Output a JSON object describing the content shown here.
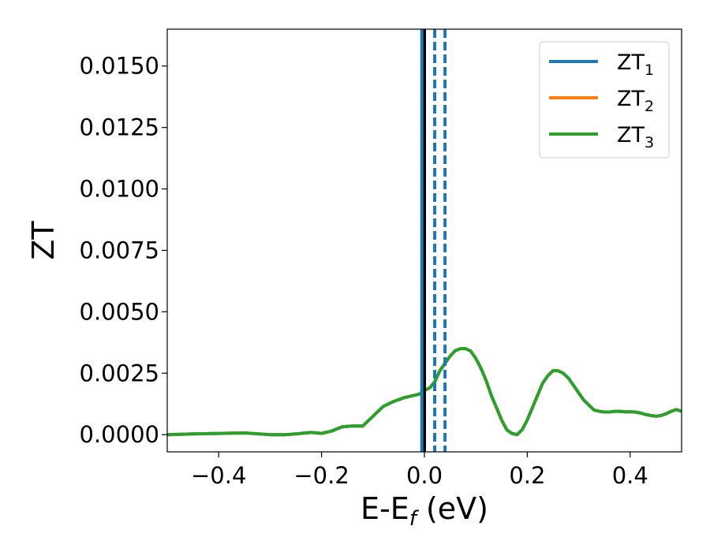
{
  "chart_data": {
    "type": "line",
    "xlabel_main": "E-E",
    "xlabel_sub": "f",
    "xlabel_unit": " (eV)",
    "ylabel": "ZT",
    "xlim": [
      -0.5,
      0.5
    ],
    "ylim": [
      -0.0007,
      0.0165
    ],
    "x_ticks": [
      -0.4,
      -0.2,
      0.0,
      0.2,
      0.4
    ],
    "x_tick_labels": [
      "−0.4",
      "−0.2",
      "0.0",
      "0.2",
      "0.4"
    ],
    "y_ticks": [
      0.0,
      0.0025,
      0.005,
      0.0075,
      0.01,
      0.0125,
      0.015
    ],
    "y_tick_labels": [
      "0.0000",
      "0.0025",
      "0.0050",
      "0.0075",
      "0.0100",
      "0.0125",
      "0.0150"
    ],
    "grid": false,
    "legend_position": "top-right",
    "vlines": [
      {
        "x": 0.0,
        "color": "#000000",
        "style": "solid"
      },
      {
        "x": -0.005,
        "color": "#1f77b4",
        "style": "solid"
      },
      {
        "x": 0.02,
        "color": "#1f77b4",
        "style": "dashed"
      },
      {
        "x": 0.04,
        "color": "#1f77b4",
        "style": "dashed"
      }
    ],
    "series": [
      {
        "name": "ZT",
        "sub": "1",
        "color": "#1f77b4",
        "x": [
          -0.5,
          -0.45,
          -0.4,
          -0.35,
          -0.3,
          -0.27,
          -0.25,
          -0.22,
          -0.2,
          -0.18,
          -0.16,
          -0.14,
          -0.12,
          -0.1,
          -0.08,
          -0.06,
          -0.04,
          -0.02,
          -0.01,
          0.0,
          0.01,
          0.02,
          0.03,
          0.04,
          0.05,
          0.06,
          0.07,
          0.08,
          0.09,
          0.1,
          0.11,
          0.12,
          0.13,
          0.14,
          0.15,
          0.16,
          0.17,
          0.18,
          0.19,
          0.2,
          0.21,
          0.22,
          0.23,
          0.24,
          0.25,
          0.26,
          0.27,
          0.28,
          0.29,
          0.3,
          0.31,
          0.32,
          0.33,
          0.34,
          0.35,
          0.36,
          0.37,
          0.38,
          0.39,
          0.4,
          0.41,
          0.42,
          0.43,
          0.44,
          0.45,
          0.46,
          0.47,
          0.48,
          0.49,
          0.5
        ],
        "y": [
          0.0,
          3e-05,
          5e-05,
          7e-05,
          0.0,
          0.0,
          3e-05,
          9e-05,
          5e-05,
          0.00015,
          0.00032,
          0.00035,
          0.00035,
          0.00075,
          0.00115,
          0.00135,
          0.0015,
          0.0016,
          0.00165,
          0.0018,
          0.0019,
          0.00215,
          0.0026,
          0.0029,
          0.0032,
          0.00342,
          0.0035,
          0.0035,
          0.0034,
          0.0031,
          0.0027,
          0.0022,
          0.0016,
          0.0011,
          0.0006,
          0.0002,
          5e-05,
          0.0,
          0.0002,
          0.0006,
          0.0011,
          0.0016,
          0.0021,
          0.0024,
          0.0026,
          0.0026,
          0.0025,
          0.0023,
          0.002,
          0.0017,
          0.0014,
          0.0012,
          0.001,
          0.00095,
          0.00092,
          0.00092,
          0.00095,
          0.00095,
          0.00093,
          0.00093,
          0.00092,
          0.00088,
          0.00082,
          0.00078,
          0.00075,
          0.00078,
          0.00085,
          0.00095,
          0.00102,
          0.00095
        ]
      },
      {
        "name": "ZT",
        "sub": "2",
        "color": "#ff7f0e",
        "x": [
          -0.5,
          -0.45,
          -0.4,
          -0.35,
          -0.3,
          -0.27,
          -0.25,
          -0.22,
          -0.2,
          -0.18,
          -0.16,
          -0.14,
          -0.12,
          -0.1,
          -0.08,
          -0.06,
          -0.04,
          -0.02,
          -0.01,
          0.0,
          0.01,
          0.02,
          0.03,
          0.04,
          0.05,
          0.06,
          0.07,
          0.08,
          0.09,
          0.1,
          0.11,
          0.12,
          0.13,
          0.14,
          0.15,
          0.16,
          0.17,
          0.18,
          0.19,
          0.2,
          0.21,
          0.22,
          0.23,
          0.24,
          0.25,
          0.26,
          0.27,
          0.28,
          0.29,
          0.3,
          0.31,
          0.32,
          0.33,
          0.34,
          0.35,
          0.36,
          0.37,
          0.38,
          0.39,
          0.4,
          0.41,
          0.42,
          0.43,
          0.44,
          0.45,
          0.46,
          0.47,
          0.48,
          0.49,
          0.5
        ],
        "y": [
          0.0,
          3e-05,
          5e-05,
          7e-05,
          0.0,
          0.0,
          3e-05,
          9e-05,
          5e-05,
          0.00015,
          0.00032,
          0.00035,
          0.00035,
          0.00075,
          0.00115,
          0.00135,
          0.0015,
          0.0016,
          0.00165,
          0.0018,
          0.0019,
          0.00215,
          0.0026,
          0.0029,
          0.0032,
          0.00342,
          0.0035,
          0.0035,
          0.0034,
          0.0031,
          0.0027,
          0.0022,
          0.0016,
          0.0011,
          0.0006,
          0.0002,
          5e-05,
          0.0,
          0.0002,
          0.0006,
          0.0011,
          0.0016,
          0.0021,
          0.0024,
          0.0026,
          0.0026,
          0.0025,
          0.0023,
          0.002,
          0.0017,
          0.0014,
          0.0012,
          0.001,
          0.00095,
          0.00092,
          0.00092,
          0.00095,
          0.00095,
          0.00093,
          0.00093,
          0.00092,
          0.00088,
          0.00082,
          0.00078,
          0.00075,
          0.00078,
          0.00085,
          0.00095,
          0.00102,
          0.00095
        ]
      },
      {
        "name": "ZT",
        "sub": "3",
        "color": "#2ca02c",
        "x": [
          -0.5,
          -0.45,
          -0.4,
          -0.35,
          -0.3,
          -0.27,
          -0.25,
          -0.22,
          -0.2,
          -0.18,
          -0.16,
          -0.14,
          -0.12,
          -0.1,
          -0.08,
          -0.06,
          -0.04,
          -0.02,
          -0.01,
          0.0,
          0.01,
          0.02,
          0.03,
          0.04,
          0.05,
          0.06,
          0.07,
          0.08,
          0.09,
          0.1,
          0.11,
          0.12,
          0.13,
          0.14,
          0.15,
          0.16,
          0.17,
          0.18,
          0.19,
          0.2,
          0.21,
          0.22,
          0.23,
          0.24,
          0.25,
          0.26,
          0.27,
          0.28,
          0.29,
          0.3,
          0.31,
          0.32,
          0.33,
          0.34,
          0.35,
          0.36,
          0.37,
          0.38,
          0.39,
          0.4,
          0.41,
          0.42,
          0.43,
          0.44,
          0.45,
          0.46,
          0.47,
          0.48,
          0.49,
          0.5
        ],
        "y": [
          0.0,
          3e-05,
          5e-05,
          7e-05,
          0.0,
          0.0,
          3e-05,
          9e-05,
          5e-05,
          0.00015,
          0.00032,
          0.00035,
          0.00035,
          0.00075,
          0.00115,
          0.00135,
          0.0015,
          0.0016,
          0.00165,
          0.0018,
          0.0019,
          0.00215,
          0.0026,
          0.0029,
          0.0032,
          0.00342,
          0.0035,
          0.0035,
          0.0034,
          0.0031,
          0.0027,
          0.0022,
          0.0016,
          0.0011,
          0.0006,
          0.0002,
          5e-05,
          0.0,
          0.0002,
          0.0006,
          0.0011,
          0.0016,
          0.0021,
          0.0024,
          0.0026,
          0.0026,
          0.0025,
          0.0023,
          0.002,
          0.0017,
          0.0014,
          0.0012,
          0.001,
          0.00095,
          0.00092,
          0.00092,
          0.00095,
          0.00095,
          0.00093,
          0.00093,
          0.00092,
          0.00088,
          0.00082,
          0.00078,
          0.00075,
          0.00078,
          0.00085,
          0.00095,
          0.00102,
          0.00095
        ]
      }
    ]
  }
}
